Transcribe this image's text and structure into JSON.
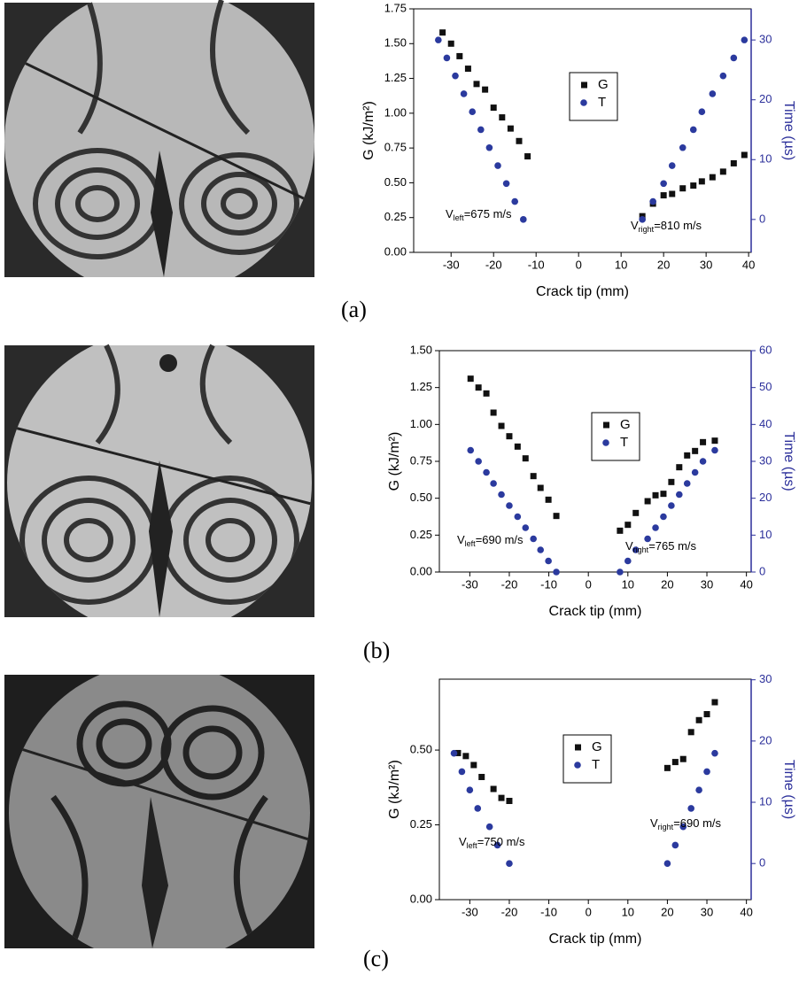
{
  "chart_data": [
    {
      "type": "scatter",
      "panel_label": "(a)",
      "xlabel": "Crack tip (mm)",
      "ylabel": "G (kJ/m²)",
      "y2label": "Time (µs)",
      "xlim": [
        -38.8,
        40.6
      ],
      "xticks": [
        -30,
        -20,
        -10,
        0,
        10,
        20,
        30,
        40
      ],
      "ylim": [
        0,
        1.75
      ],
      "yticks": [
        {
          "value": 0,
          "label": "0.00"
        },
        0.25,
        {
          "value": 0.5,
          "label": "0.50"
        },
        0.75,
        {
          "value": 1,
          "label": "1.00"
        },
        1.25,
        {
          "value": 1.5,
          "label": "1.50"
        },
        1.75
      ],
      "y2lim": [
        -5.5,
        35.2
      ],
      "y2ticks": [
        0,
        10,
        20,
        30
      ],
      "y2color": "#2b2f9a",
      "series": [
        {
          "name": "G",
          "color": "#111111",
          "marker": "square",
          "axis": "y",
          "x": [
            -32,
            -30,
            -28,
            -26,
            -24,
            -22,
            -20,
            -18,
            -16,
            -14,
            -12,
            15,
            17.5,
            20,
            22,
            24.5,
            27,
            29,
            31.5,
            34,
            36.5,
            39
          ],
          "values": [
            1.58,
            1.5,
            1.41,
            1.32,
            1.21,
            1.17,
            1.04,
            0.97,
            0.89,
            0.8,
            0.69,
            0.26,
            0.35,
            0.41,
            0.42,
            0.46,
            0.48,
            0.51,
            0.54,
            0.58,
            0.64,
            0.7
          ]
        },
        {
          "name": "T",
          "color": "#2b3a9e",
          "marker": "circle",
          "axis": "y2",
          "x": [
            -33,
            -31,
            -29,
            -27,
            -25,
            -23,
            -21,
            -19,
            -17,
            -15,
            -13,
            15,
            17.5,
            20,
            22,
            24.5,
            27,
            29,
            31.5,
            34,
            36.5,
            39
          ],
          "values": [
            30,
            27,
            24,
            21,
            18,
            15,
            12,
            9,
            6,
            3,
            0,
            0,
            3,
            6,
            9,
            12,
            15,
            18,
            21,
            24,
            27,
            30
          ]
        }
      ],
      "annotations": [
        {
          "v": "V",
          "sub": "left",
          "rest": "=675 m/s"
        },
        {
          "v": "V",
          "sub": "right",
          "rest": "=810 m/s"
        }
      ]
    },
    {
      "type": "scatter",
      "panel_label": "(b)",
      "xlabel": "Crack tip (mm)",
      "ylabel": "G (kJ/m²)",
      "y2label": "Time (µs)",
      "xlim": [
        -37.7,
        41.2
      ],
      "xticks": [
        -30,
        -20,
        -10,
        0,
        10,
        20,
        30,
        40
      ],
      "ylim": [
        0,
        1.5
      ],
      "yticks": [
        {
          "value": 0,
          "label": "0.00"
        },
        0.25,
        {
          "value": 0.5,
          "label": "0.50"
        },
        0.75,
        {
          "value": 1,
          "label": "1.00"
        },
        1.25,
        {
          "value": 1.5,
          "label": "1.50"
        }
      ],
      "y2lim": [
        0,
        60
      ],
      "y2ticks": [
        0,
        10,
        20,
        30,
        40,
        50,
        60
      ],
      "y2color": "#2b2f9a",
      "series": [
        {
          "name": "G",
          "color": "#111111",
          "marker": "square",
          "axis": "y",
          "x": [
            -29.8,
            -27.8,
            -25.8,
            -24,
            -22,
            -20,
            -17.9,
            -15.9,
            -13.9,
            -12.1,
            -10.1,
            -8.1,
            8,
            10,
            12,
            15,
            17,
            19,
            21,
            23,
            25,
            27,
            29,
            32
          ],
          "values": [
            1.31,
            1.25,
            1.21,
            1.08,
            0.99,
            0.92,
            0.85,
            0.77,
            0.65,
            0.57,
            0.49,
            0.38,
            0.28,
            0.32,
            0.4,
            0.48,
            0.52,
            0.53,
            0.61,
            0.71,
            0.79,
            0.82,
            0.88,
            0.89
          ]
        },
        {
          "name": "T",
          "color": "#2b3a9e",
          "marker": "circle",
          "axis": "y2",
          "x": [
            -29.8,
            -27.8,
            -25.8,
            -24,
            -22,
            -20,
            -17.9,
            -15.9,
            -13.9,
            -12.1,
            -10.1,
            -8.1,
            8,
            10,
            12,
            15,
            17,
            19,
            21,
            23,
            25,
            27,
            29,
            32
          ],
          "values": [
            33,
            30,
            27,
            24,
            21,
            18,
            15,
            12,
            9,
            6,
            3,
            0,
            0,
            3,
            6,
            9,
            12,
            15,
            18,
            21,
            24,
            27,
            30,
            33
          ]
        }
      ],
      "annotations": [
        {
          "v": "V",
          "sub": "left",
          "rest": "=690 m/s"
        },
        {
          "v": "V",
          "sub": "right",
          "rest": "=765 m/s"
        }
      ]
    },
    {
      "type": "scatter",
      "panel_label": "(c)",
      "xlabel": "Crack tip (mm)",
      "ylabel": "G (kJ/m²)",
      "y2label": "Time (µs)",
      "xlim": [
        -37.7,
        41.2
      ],
      "xticks": [
        -30,
        -20,
        -10,
        0,
        10,
        20,
        30,
        40
      ],
      "ylim": [
        0,
        0.737
      ],
      "yticks": [
        {
          "value": 0,
          "label": "0.00"
        },
        0.25,
        {
          "value": 0.5,
          "label": "0.50"
        }
      ],
      "y2lim": [
        -5.9,
        30.1
      ],
      "y2ticks": [
        0,
        10,
        20,
        30
      ],
      "y2color": "#2b2f9a",
      "series": [
        {
          "name": "G",
          "color": "#111111",
          "marker": "square",
          "axis": "y",
          "x": [
            -33,
            -31,
            -29,
            -27,
            -24,
            -22,
            -20,
            20,
            22,
            24,
            26,
            28,
            30,
            32
          ],
          "values": [
            0.49,
            0.48,
            0.45,
            0.41,
            0.37,
            0.34,
            0.33,
            0.44,
            0.46,
            0.47,
            0.56,
            0.6,
            0.62,
            0.66
          ]
        },
        {
          "name": "T",
          "color": "#2b3a9e",
          "marker": "circle",
          "axis": "y2",
          "x": [
            -34,
            -32,
            -30,
            -28,
            -25,
            -23,
            -20,
            20,
            22,
            24,
            26,
            28,
            30,
            32
          ],
          "values": [
            18,
            15,
            12,
            9,
            6,
            3,
            0,
            0,
            3,
            6,
            9,
            12,
            15,
            18
          ]
        }
      ],
      "annotations": [
        {
          "v": "V",
          "sub": "left",
          "rest": "=750 m/s"
        },
        {
          "v": "V",
          "sub": "right",
          "rest": "=690 m/s"
        }
      ]
    }
  ]
}
